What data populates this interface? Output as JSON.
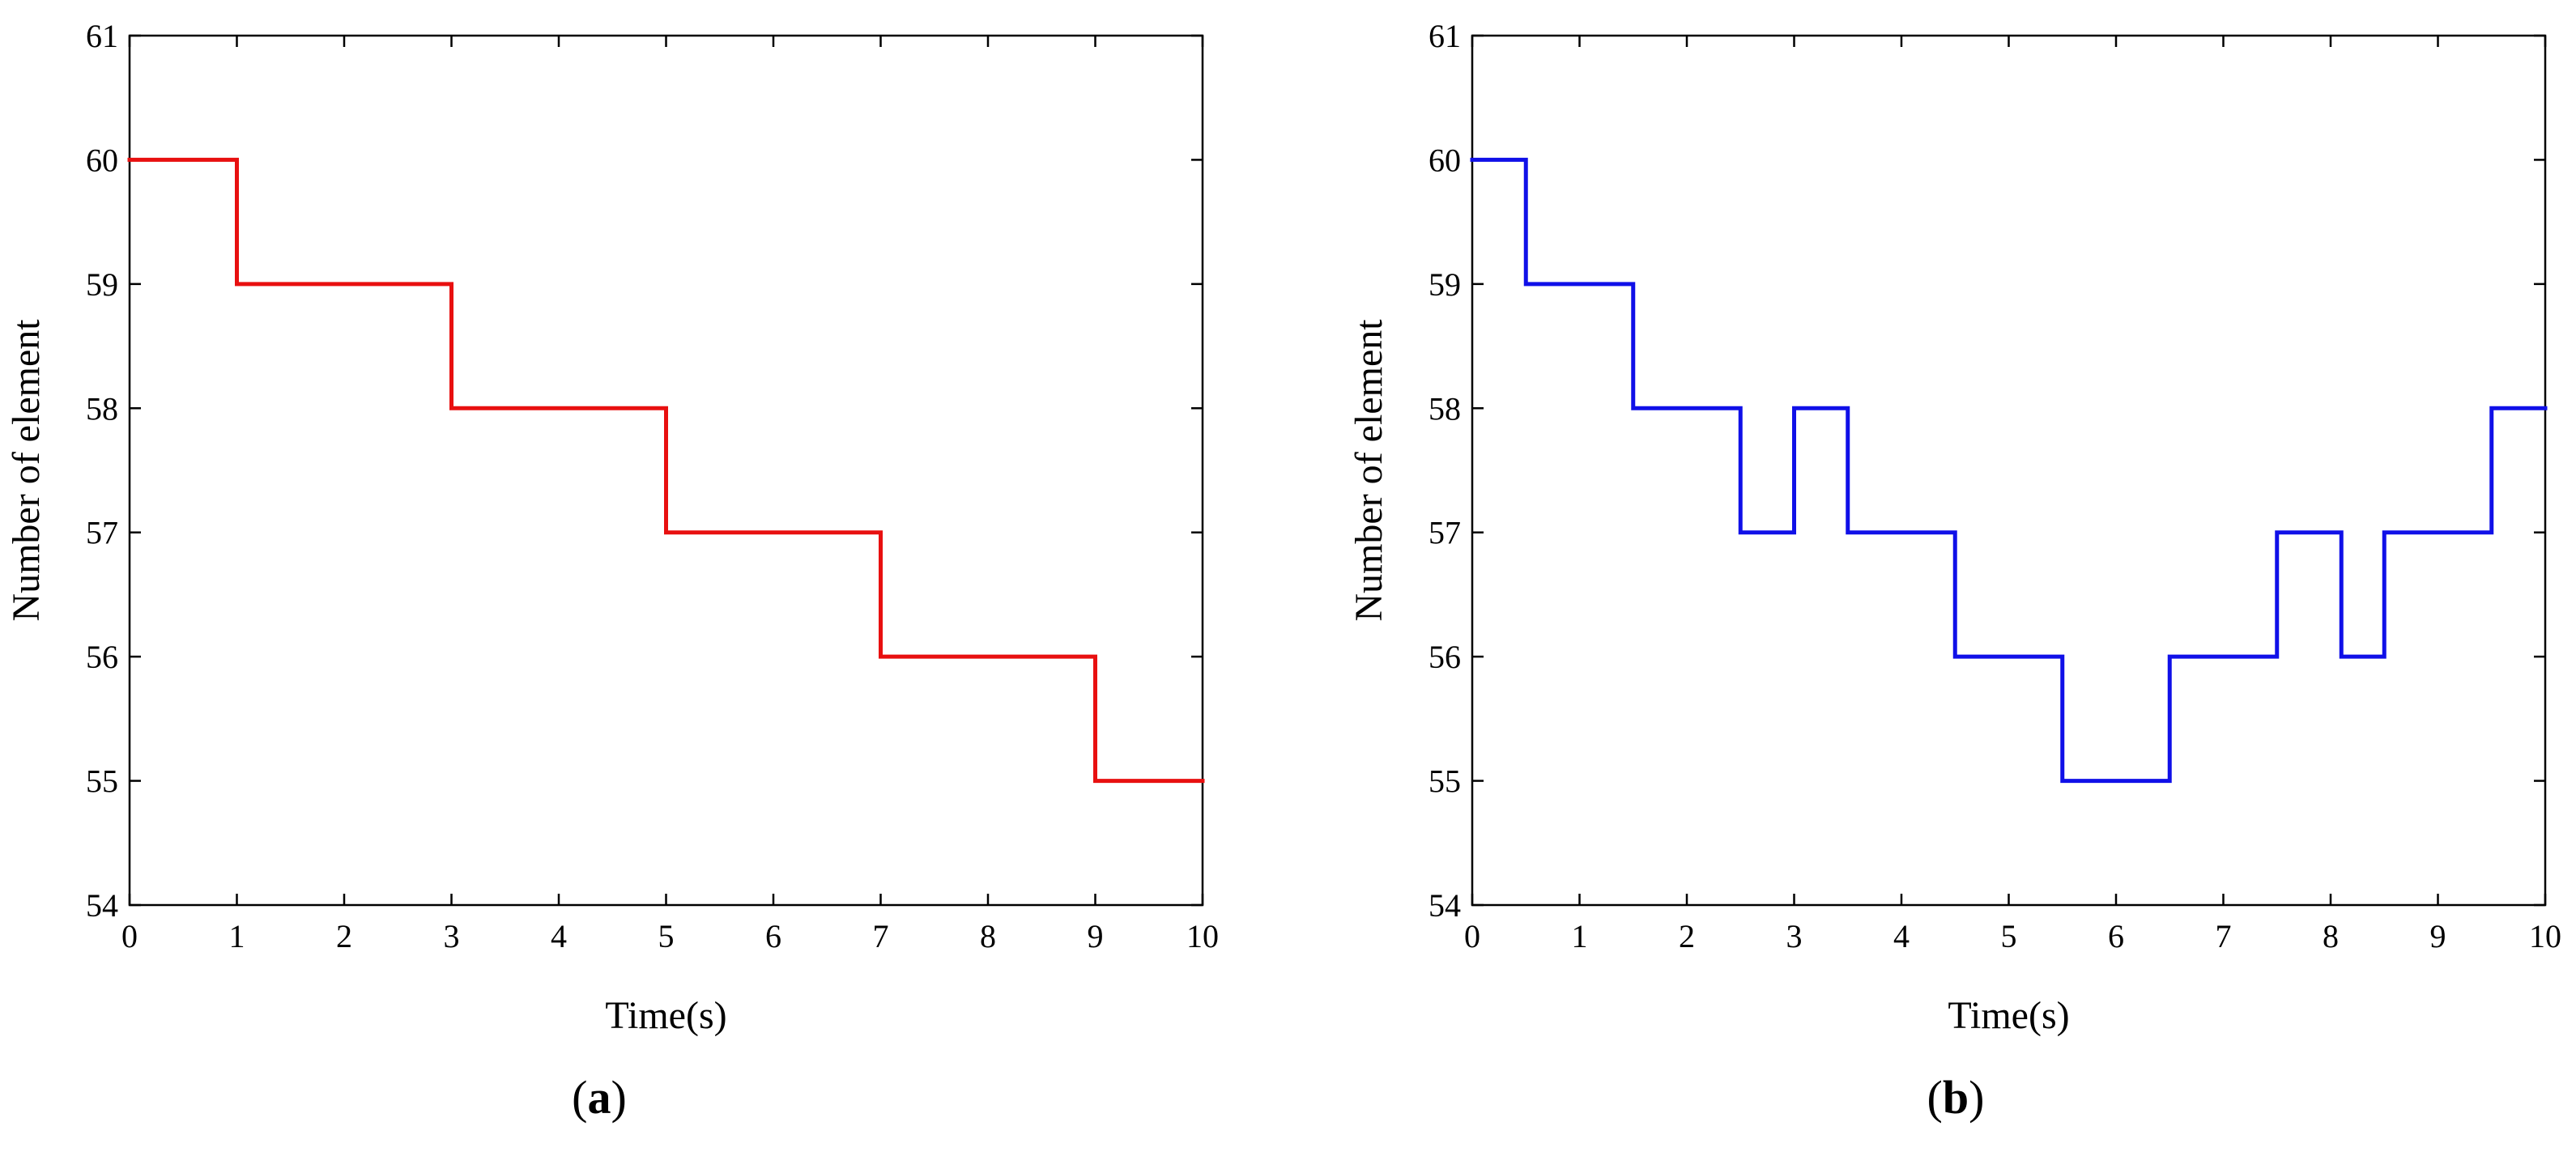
{
  "chart_data": [
    {
      "type": "line",
      "step": "post",
      "panel_label": "a",
      "caption_open": "(",
      "caption_close": ")",
      "xlabel": "Time(s)",
      "ylabel": "Number of element",
      "xlim": [
        0,
        10
      ],
      "ylim": [
        54,
        61
      ],
      "xticks": [
        0,
        1,
        2,
        3,
        4,
        5,
        6,
        7,
        8,
        9,
        10
      ],
      "yticks": [
        54,
        55,
        56,
        57,
        58,
        59,
        60,
        61
      ],
      "grid": false,
      "color": "#e81010",
      "series": [
        {
          "x": [
            0,
            1,
            3,
            5,
            7,
            9,
            10
          ],
          "y": [
            60,
            59,
            58,
            57,
            56,
            55,
            55
          ]
        }
      ]
    },
    {
      "type": "line",
      "step": "post",
      "panel_label": "b",
      "caption_open": "(",
      "caption_close": ")",
      "xlabel": "Time(s)",
      "ylabel": "Number of element",
      "xlim": [
        0,
        10
      ],
      "ylim": [
        54,
        61
      ],
      "xticks": [
        0,
        1,
        2,
        3,
        4,
        5,
        6,
        7,
        8,
        9,
        10
      ],
      "yticks": [
        54,
        55,
        56,
        57,
        58,
        59,
        60,
        61
      ],
      "grid": false,
      "color": "#1010e8",
      "series": [
        {
          "x": [
            0,
            0.5,
            1.5,
            2.5,
            3.0,
            3.5,
            4.5,
            5.5,
            6.5,
            7.5,
            8.1,
            8.5,
            9.5,
            10
          ],
          "y": [
            60,
            59,
            58,
            57,
            58,
            57,
            56,
            55,
            56,
            57,
            56,
            57,
            58,
            58
          ]
        }
      ]
    }
  ]
}
